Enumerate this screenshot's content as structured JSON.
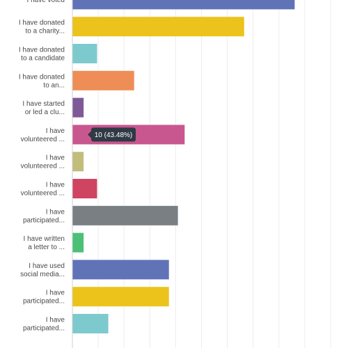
{
  "chart_data": {
    "type": "bar",
    "orientation": "horizontal",
    "grid": true,
    "xlim": [
      0,
      23
    ],
    "categories": [
      [
        "I have voted"
      ],
      [
        "I have donated",
        "to a charity..."
      ],
      [
        "I have donated",
        "to a candidate"
      ],
      [
        "I have donated",
        "to an..."
      ],
      [
        "I have started",
        "or led a clu..."
      ],
      [
        "I have",
        "volunteered ..."
      ],
      [
        "I have",
        "volunteered ..."
      ],
      [
        "I have",
        "volunteered ..."
      ],
      [
        "I have",
        "participated..."
      ],
      [
        "I have written",
        "a letter to ..."
      ],
      [
        "I have used",
        "social media..."
      ],
      [
        "I have",
        "participated..."
      ],
      [
        "I have",
        "participated..."
      ]
    ],
    "values": [
      19.8,
      15.3,
      2.2,
      5.5,
      1.0,
      10,
      1.0,
      2.2,
      9.4,
      1.0,
      8.6,
      8.6,
      3.2
    ],
    "colors": [
      "#6173b7",
      "#ecc31b",
      "#7ccacd",
      "#ef8d57",
      "#7d5a97",
      "#c9578f",
      "#c1be7c",
      "#cf4460",
      "#7a7f83",
      "#4cc077",
      "#6173b7",
      "#ecc31b",
      "#7ccacd"
    ],
    "tooltip": {
      "index": 5,
      "text": "10 (43.48%)"
    }
  }
}
